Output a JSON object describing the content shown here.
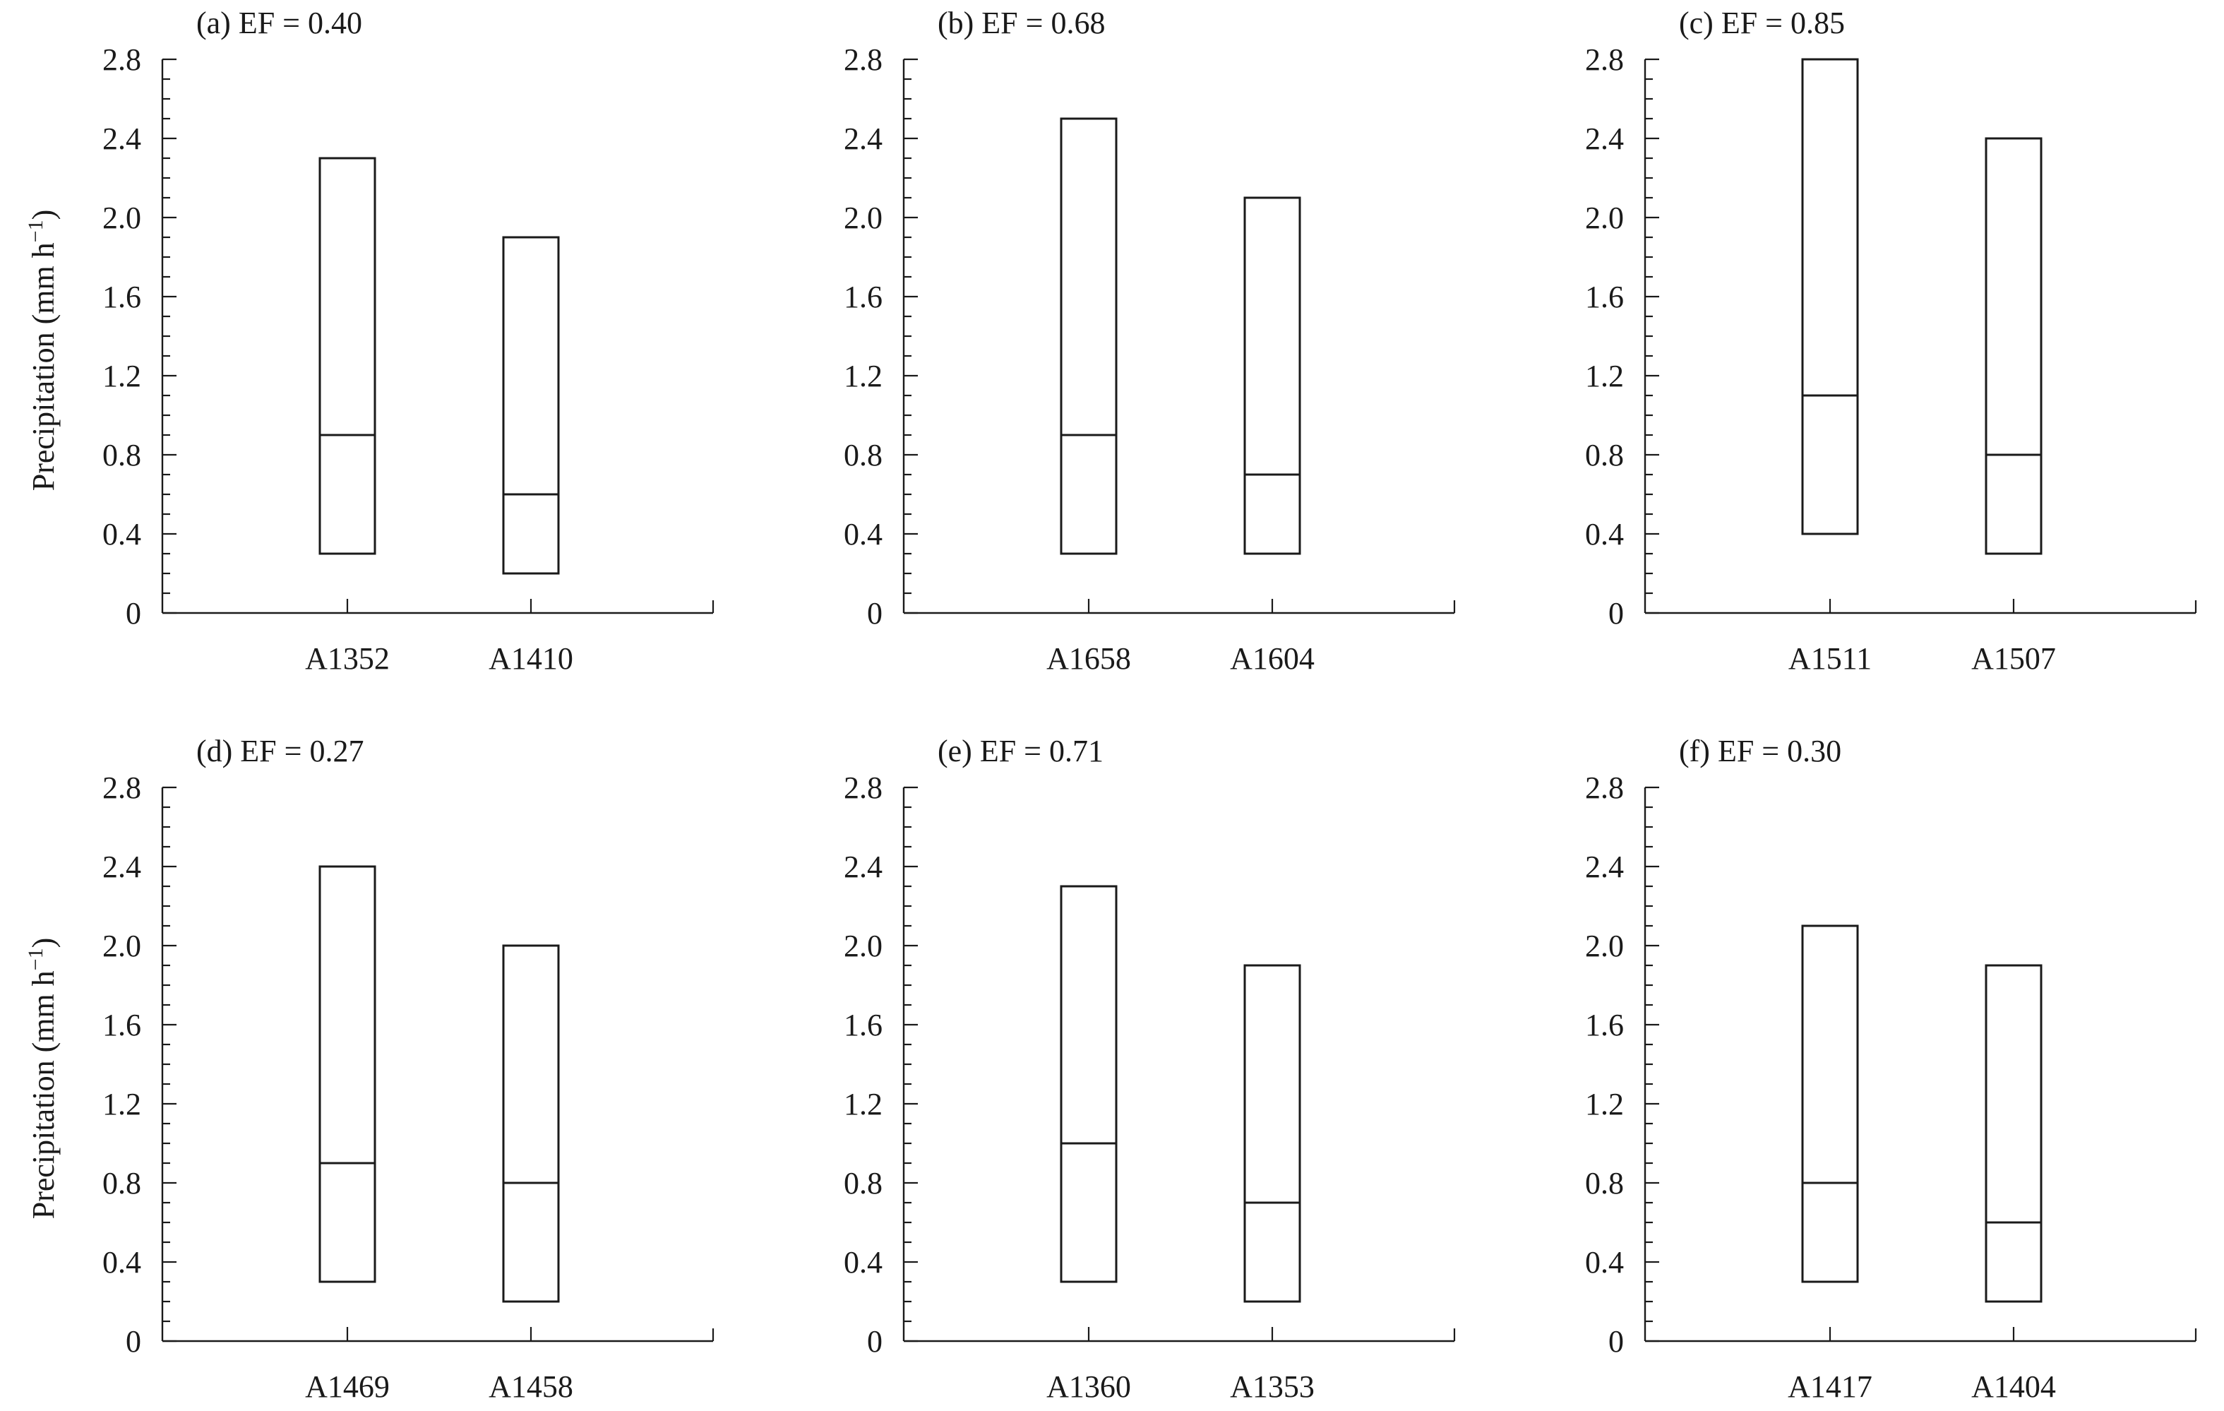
{
  "figure": {
    "ylabel": "Precipitation (mm h",
    "ylabel_superscript": "−1",
    "ylabel_close": ")"
  },
  "chart_data": [
    {
      "type": "box",
      "title": "(a) EF = 0.40",
      "ylim": [
        0,
        2.8
      ],
      "yticks": [
        "0",
        "0.4",
        "0.8",
        "1.2",
        "1.6",
        "2.0",
        "2.4",
        "2.8"
      ],
      "categories": [
        "A1352",
        "A1410"
      ],
      "boxes": [
        {
          "min": 0.3,
          "median": 0.9,
          "max": 2.3
        },
        {
          "min": 0.2,
          "median": 0.6,
          "max": 1.9
        }
      ]
    },
    {
      "type": "box",
      "title": "(b) EF = 0.68",
      "ylim": [
        0,
        2.8
      ],
      "yticks": [
        "0",
        "0.4",
        "0.8",
        "1.2",
        "1.6",
        "2.0",
        "2.4",
        "2.8"
      ],
      "categories": [
        "A1658",
        "A1604"
      ],
      "boxes": [
        {
          "min": 0.3,
          "median": 0.9,
          "max": 2.5
        },
        {
          "min": 0.3,
          "median": 0.7,
          "max": 2.1
        }
      ]
    },
    {
      "type": "box",
      "title": "(c) EF = 0.85",
      "ylim": [
        0,
        2.8
      ],
      "yticks": [
        "0",
        "0.4",
        "0.8",
        "1.2",
        "1.6",
        "2.0",
        "2.4",
        "2.8"
      ],
      "categories": [
        "A1511",
        "A1507"
      ],
      "boxes": [
        {
          "min": 0.4,
          "median": 1.1,
          "max": 2.8
        },
        {
          "min": 0.3,
          "median": 0.8,
          "max": 2.4
        }
      ]
    },
    {
      "type": "box",
      "title": "(d) EF = 0.27",
      "ylim": [
        0,
        2.8
      ],
      "yticks": [
        "0",
        "0.4",
        "0.8",
        "1.2",
        "1.6",
        "2.0",
        "2.4",
        "2.8"
      ],
      "categories": [
        "A1469",
        "A1458"
      ],
      "boxes": [
        {
          "min": 0.3,
          "median": 0.9,
          "max": 2.4
        },
        {
          "min": 0.2,
          "median": 0.8,
          "max": 2.0
        }
      ]
    },
    {
      "type": "box",
      "title": "(e) EF = 0.71",
      "ylim": [
        0,
        2.8
      ],
      "yticks": [
        "0",
        "0.4",
        "0.8",
        "1.2",
        "1.6",
        "2.0",
        "2.4",
        "2.8"
      ],
      "categories": [
        "A1360",
        "A1353"
      ],
      "boxes": [
        {
          "min": 0.3,
          "median": 1.0,
          "max": 2.3
        },
        {
          "min": 0.2,
          "median": 0.7,
          "max": 1.9
        }
      ]
    },
    {
      "type": "box",
      "title": "(f) EF = 0.30",
      "ylim": [
        0,
        2.8
      ],
      "yticks": [
        "0",
        "0.4",
        "0.8",
        "1.2",
        "1.6",
        "2.0",
        "2.4",
        "2.8"
      ],
      "categories": [
        "A1417",
        "A1404"
      ],
      "boxes": [
        {
          "min": 0.3,
          "median": 0.8,
          "max": 2.1
        },
        {
          "min": 0.2,
          "median": 0.6,
          "max": 1.9
        }
      ]
    }
  ]
}
